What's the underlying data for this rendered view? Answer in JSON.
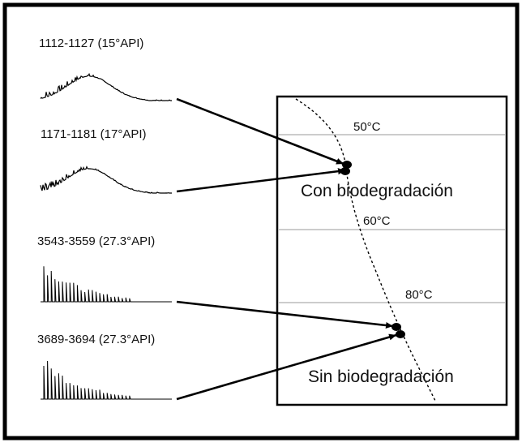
{
  "samples": [
    {
      "label": "1112-1127 (15°API)",
      "profile": "biodegraded"
    },
    {
      "label": "1171-1181 (17°API)",
      "profile": "biodegraded"
    },
    {
      "label": "3543-3559 (27.3°API)",
      "profile": "fresh"
    },
    {
      "label": "3689-3694 (27.3°API)",
      "profile": "fresh"
    }
  ],
  "temperatures": [
    "50°C",
    "60°C",
    "80°C"
  ],
  "zones": {
    "with": "Con biodegradación",
    "without": "Sin biodegradación"
  },
  "colors": {
    "frame": "#000000",
    "ink": "#111111",
    "grid": "#9a9a9a"
  }
}
